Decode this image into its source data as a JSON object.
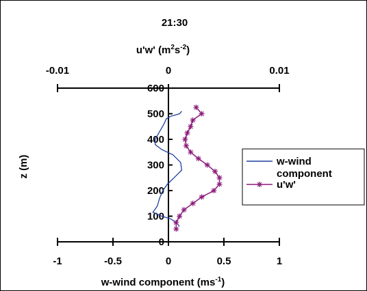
{
  "chart_data": {
    "type": "line",
    "title": "21:30",
    "top_axis": {
      "label_main": "u'w' (m",
      "label_sup1": "2",
      "label_mid": "s",
      "label_sup2": "-2",
      "label_end": ")",
      "range": [
        -0.01,
        0.01
      ],
      "ticks": [
        "-0.01",
        "0",
        "0.01"
      ]
    },
    "bottom_axis": {
      "label_main": "w-wind component (ms",
      "label_sup": "-1",
      "label_end": ")",
      "range": [
        -1,
        1
      ],
      "ticks": [
        "-1",
        "-0.5",
        "0",
        "0.5",
        "1"
      ]
    },
    "y_axis": {
      "label": "z (m)",
      "range": [
        0,
        600
      ],
      "ticks": [
        "0",
        "100",
        "200",
        "300",
        "400",
        "500",
        "600"
      ]
    },
    "series": [
      {
        "name": "w-wind component",
        "color": "#1f3fa0",
        "marker": "none",
        "axis": "bottom",
        "points": [
          [
            0.12,
            510
          ],
          [
            0.1,
            500
          ],
          [
            0.02,
            490
          ],
          [
            -0.02,
            480
          ],
          [
            -0.04,
            460
          ],
          [
            -0.08,
            430
          ],
          [
            -0.12,
            400
          ],
          [
            -0.12,
            380
          ],
          [
            -0.06,
            360
          ],
          [
            0.04,
            340
          ],
          [
            0.11,
            310
          ],
          [
            0.12,
            280
          ],
          [
            0.05,
            250
          ],
          [
            -0.01,
            225
          ],
          [
            -0.05,
            200
          ],
          [
            -0.08,
            170
          ],
          [
            -0.1,
            140
          ],
          [
            -0.14,
            115
          ],
          [
            -0.06,
            100
          ],
          [
            0.02,
            90
          ],
          [
            0.07,
            75
          ],
          [
            0.1,
            60
          ]
        ]
      },
      {
        "name": "u'w'",
        "color": "#8b1a7a",
        "marker": "asterisk",
        "axis": "bottom",
        "points": [
          [
            0.25,
            525
          ],
          [
            0.3,
            500
          ],
          [
            0.22,
            475
          ],
          [
            0.2,
            450
          ],
          [
            0.17,
            425
          ],
          [
            0.15,
            400
          ],
          [
            0.16,
            375
          ],
          [
            0.2,
            350
          ],
          [
            0.27,
            325
          ],
          [
            0.35,
            300
          ],
          [
            0.42,
            275
          ],
          [
            0.46,
            250
          ],
          [
            0.46,
            225
          ],
          [
            0.41,
            200
          ],
          [
            0.3,
            175
          ],
          [
            0.22,
            150
          ],
          [
            0.14,
            125
          ],
          [
            0.1,
            100
          ],
          [
            0.07,
            75
          ],
          [
            0.07,
            50
          ]
        ]
      }
    ],
    "legend": {
      "position": "right",
      "entries": [
        {
          "line1": "w-wind",
          "line2": "component"
        },
        {
          "line1": "u'w'",
          "line2": ""
        }
      ]
    }
  }
}
